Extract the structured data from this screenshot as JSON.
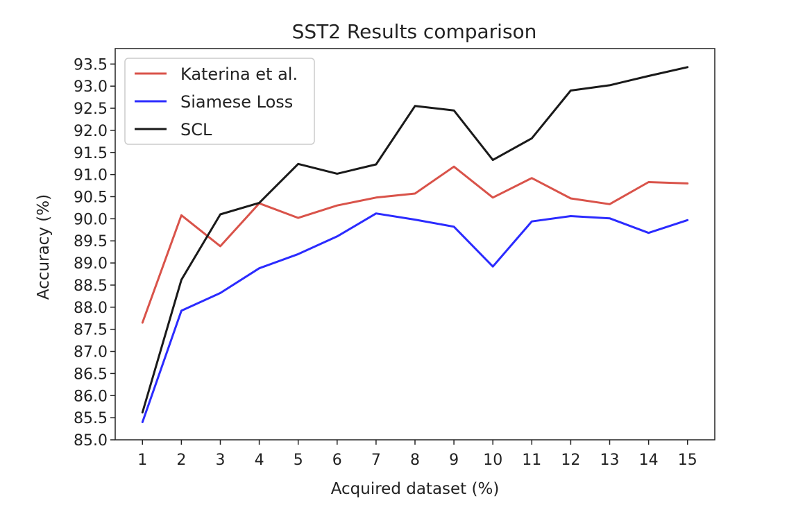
{
  "chart_data": {
    "type": "line",
    "title": "SST2 Results comparison",
    "xlabel": "Acquired dataset (%)",
    "ylabel": "Accuracy (%)",
    "x": [
      1,
      2,
      3,
      4,
      5,
      6,
      7,
      8,
      9,
      10,
      11,
      12,
      13,
      14,
      15
    ],
    "xlim": [
      0.3,
      15.7
    ],
    "ylim": [
      85.0,
      93.85
    ],
    "xticks": [
      "1",
      "2",
      "3",
      "4",
      "5",
      "6",
      "7",
      "8",
      "9",
      "10",
      "11",
      "12",
      "13",
      "14",
      "15"
    ],
    "yticks": [
      "85.0",
      "85.5",
      "86.0",
      "86.5",
      "87.0",
      "87.5",
      "88.0",
      "88.5",
      "89.0",
      "89.5",
      "90.0",
      "90.5",
      "91.0",
      "91.5",
      "92.0",
      "92.5",
      "93.0",
      "93.5"
    ],
    "grid": false,
    "legend_position": "top-left",
    "series": [
      {
        "name": "Katerina et al.",
        "color": "#d9534a",
        "values": [
          87.65,
          90.08,
          89.38,
          90.35,
          90.02,
          90.3,
          90.48,
          90.57,
          91.18,
          90.48,
          90.92,
          90.46,
          90.33,
          90.83,
          90.8
        ]
      },
      {
        "name": "Siamese Loss",
        "color": "#2b2bff",
        "values": [
          85.4,
          87.92,
          88.32,
          88.88,
          89.2,
          89.6,
          90.12,
          89.98,
          89.82,
          88.92,
          89.94,
          90.06,
          90.01,
          89.68,
          89.97
        ]
      },
      {
        "name": "SCL",
        "color": "#1a1a1a",
        "values": [
          85.62,
          88.62,
          90.1,
          90.36,
          91.24,
          91.02,
          91.23,
          92.55,
          92.45,
          91.33,
          91.82,
          92.9,
          93.02,
          93.23,
          93.43
        ]
      }
    ]
  }
}
